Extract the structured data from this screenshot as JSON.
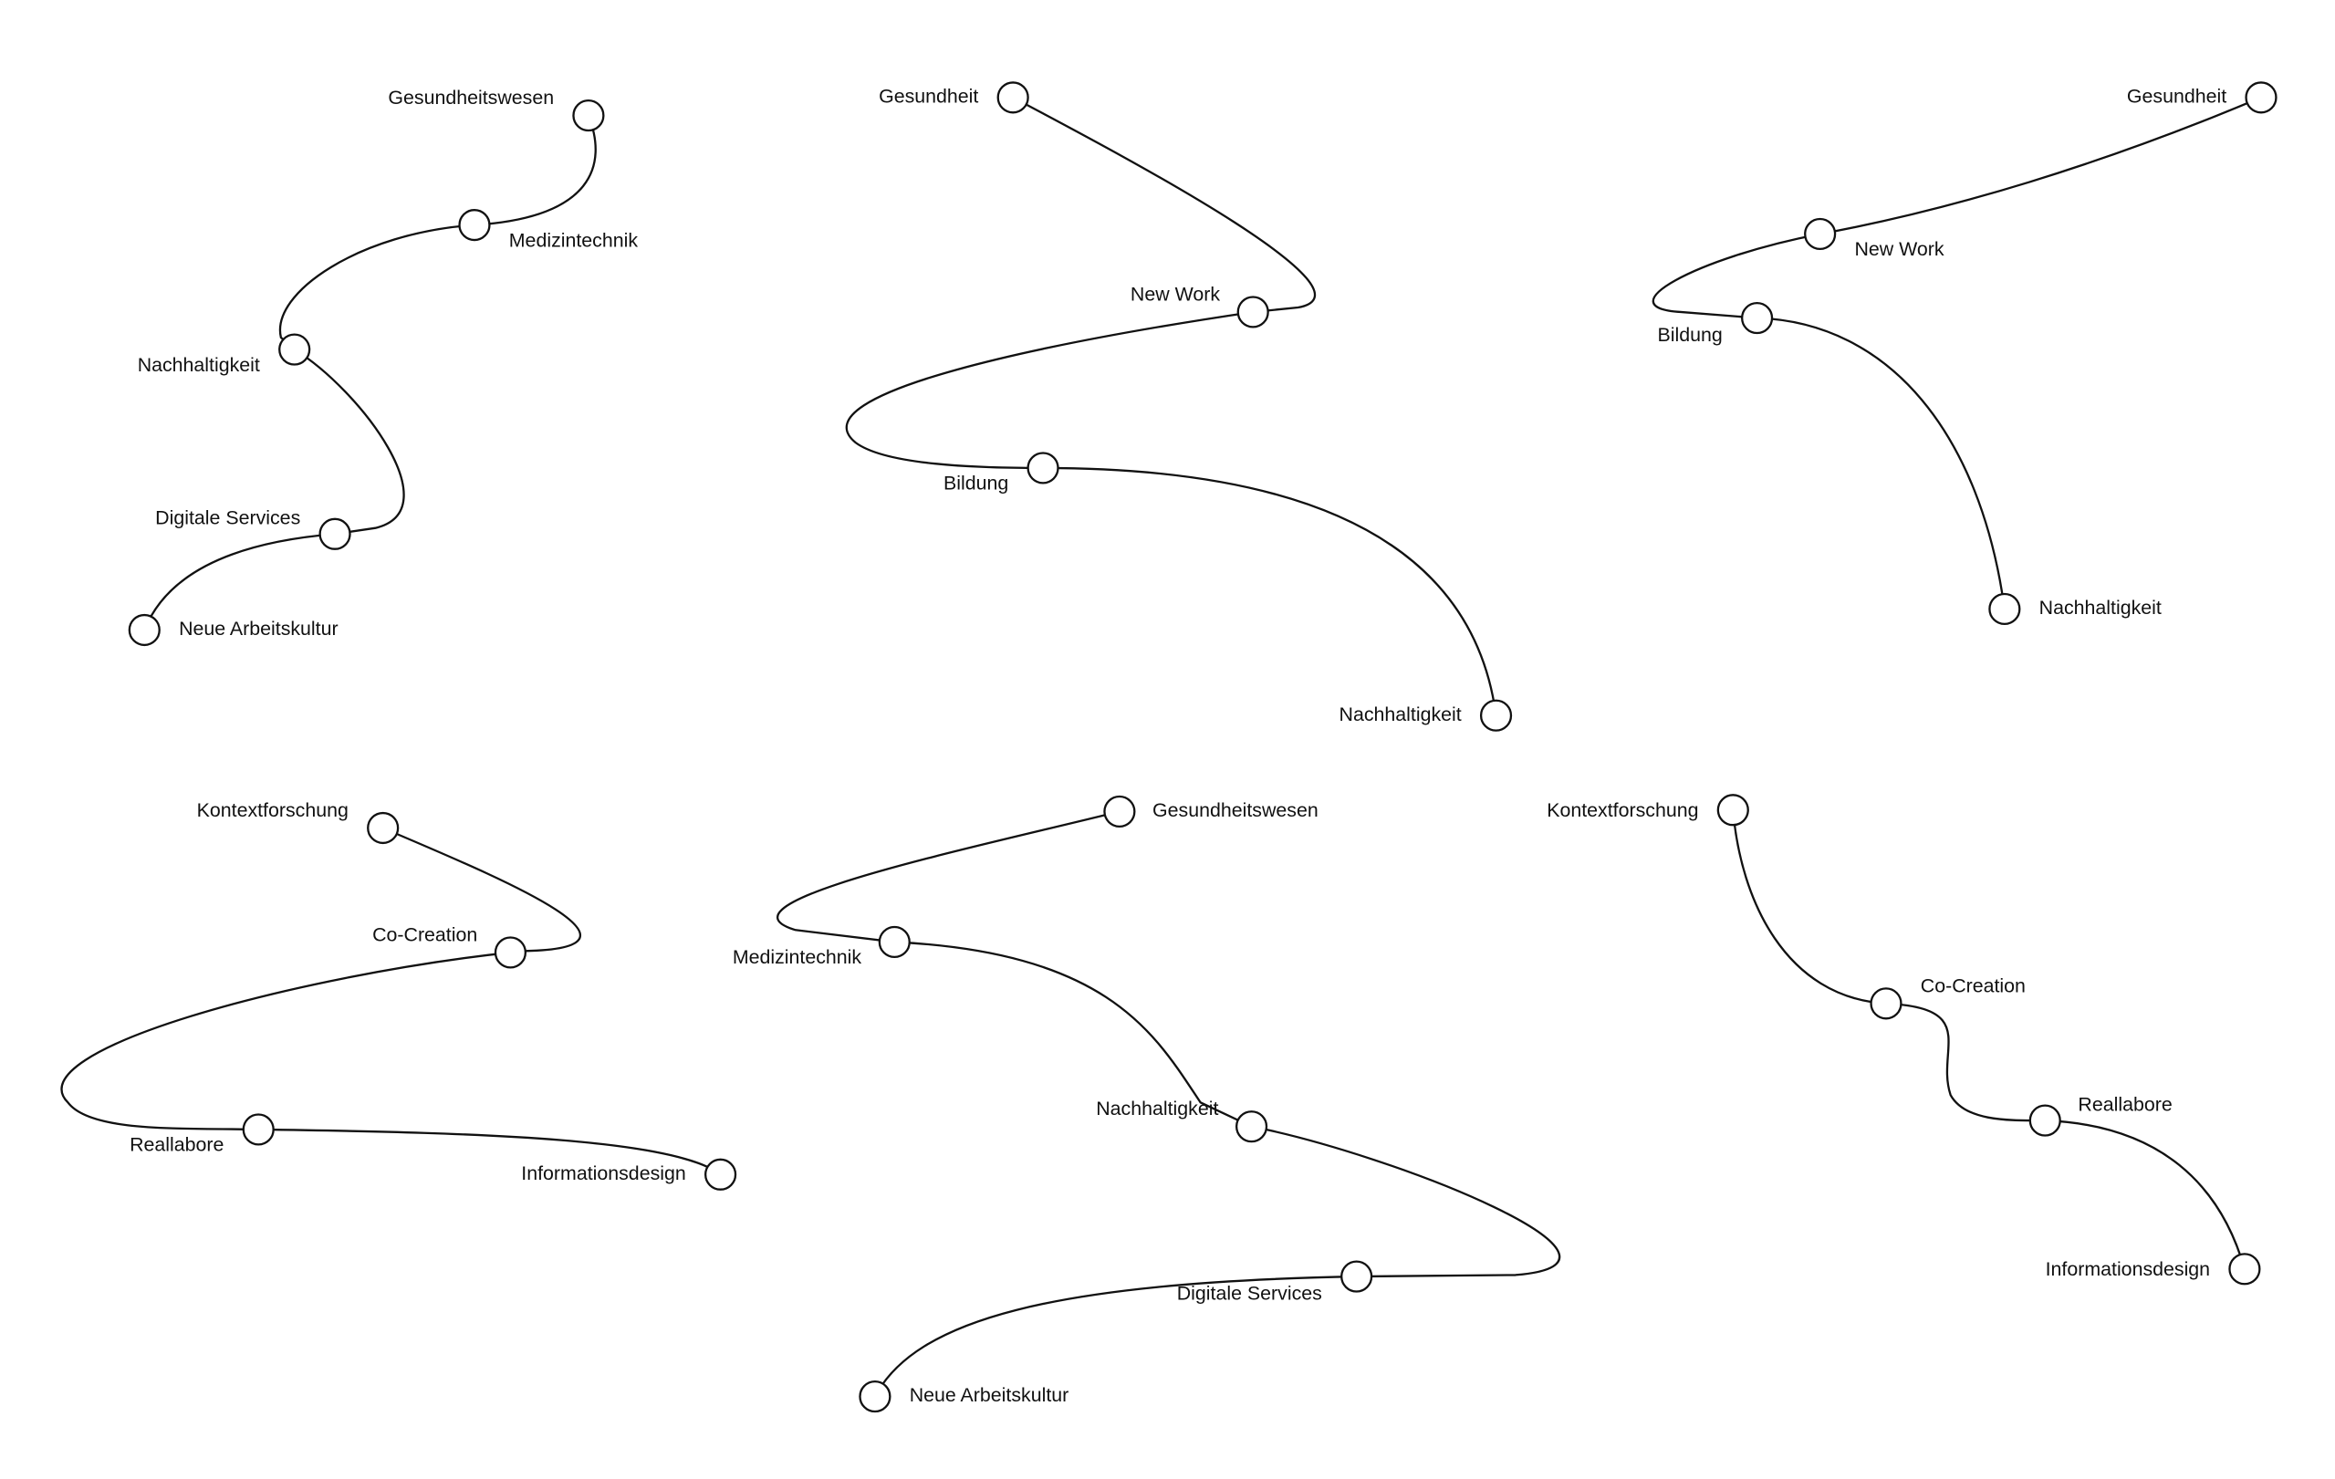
{
  "diagrams": [
    {
      "nodes": [
        "Gesundheitswesen",
        "Medizintechnik",
        "Nachhaltigkeit",
        "Digitale Services",
        "Neue Arbeitskultur"
      ]
    },
    {
      "nodes": [
        "Gesundheit",
        "New Work",
        "Bildung",
        "Nachhaltigkeit"
      ]
    },
    {
      "nodes": [
        "Gesundheit",
        "New Work",
        "Bildung",
        "Nachhaltigkeit"
      ]
    },
    {
      "nodes": [
        "Kontextforschung",
        "Co-Creation",
        "Reallabore",
        "Informationsdesign"
      ]
    },
    {
      "nodes": [
        "Gesundheitswesen",
        "Medizintechnik",
        "Nachhaltigkeit",
        "Digitale Services",
        "Neue Arbeitskultur"
      ]
    },
    {
      "nodes": [
        "Kontextforschung",
        "Co-Creation",
        "Reallabore",
        "Informationsdesign"
      ]
    }
  ]
}
